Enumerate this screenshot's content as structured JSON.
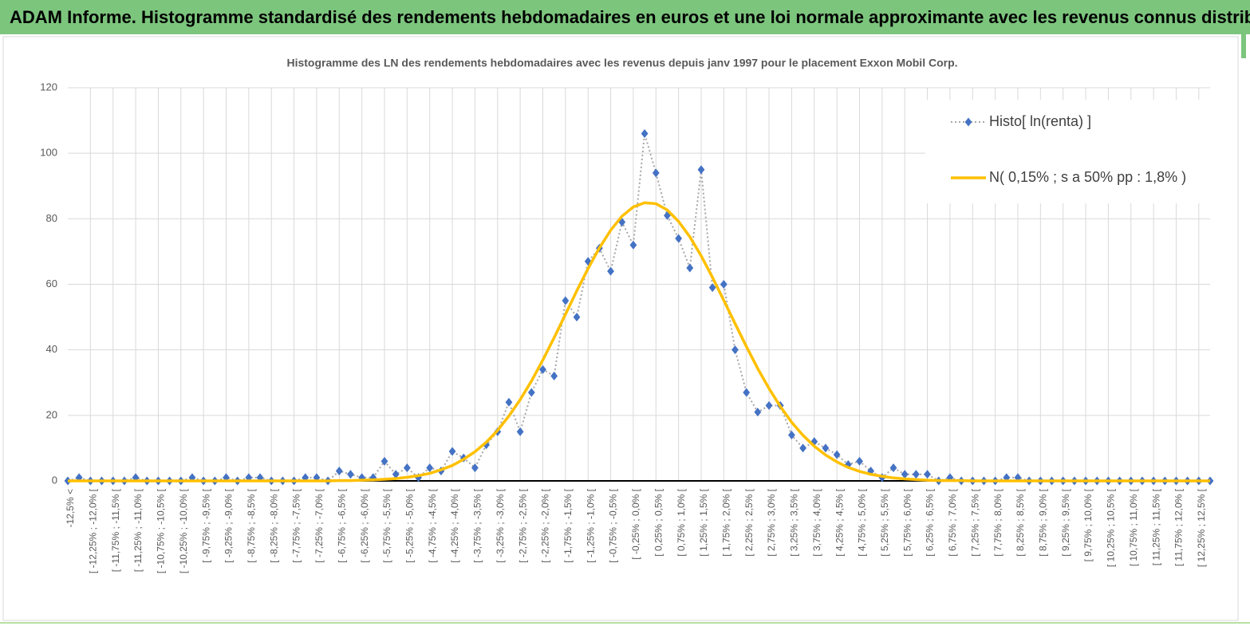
{
  "header": {
    "title": "ADAM Informe. Histogramme standardisé des rendements hebdomadaires en euros et une loi normale approximante avec les revenus connus distribués"
  },
  "chart_data": {
    "type": "line",
    "title": "Histogramme des LN des rendements hebdomadaires avec les revenus depuis janv 1997 pour le placement Exxon Mobil Corp.",
    "categories": [
      "-12,5% <",
      null,
      "[ -12,25% ; -12,0% [",
      null,
      "[ -11,75% ; -11,5% [",
      null,
      "[ -11,25% ; -11,0% [",
      null,
      "[ -10,75% ; -10,5% [",
      null,
      "[ -10,25% ; -10,0% [",
      null,
      "[ -9,75% ; -9,5% [",
      null,
      "[ -9,25% ; -9,0% [",
      null,
      "[ -8,75% ; -8,5% [",
      null,
      "[ -8,25% ; -8,0% [",
      null,
      "[ -7,75% ; -7,5% [",
      null,
      "[ -7,25% ; -7,0% [",
      null,
      "[ -6,75% ; -6,5% [",
      null,
      "[ -6,25% ; -6,0% [",
      null,
      "[ -5,75% ; -5,5% [",
      null,
      "[ -5,25% ; -5,0% [",
      null,
      "[ -4,75% ; -4,5% [",
      null,
      "[ -4,25% ; -4,0% [",
      null,
      "[ -3,75% ; -3,5% [",
      null,
      "[ -3,25% ; -3,0% [",
      null,
      "[ -2,75% ; -2,5% [",
      null,
      "[ -2,25% ; -2,0% [",
      null,
      "[ -1,75% ; -1,5% [",
      null,
      "[ -1,25% ; -1,0% [",
      null,
      "[ -0,75% ; -0,5% [",
      null,
      "[ -0,25% ; 0,0% [",
      null,
      "[ 0,25% ; 0,5% [",
      null,
      "[ 0,75% ; 1,0% [",
      null,
      "[ 1,25% ; 1,5% [",
      null,
      "[ 1,75% ; 2,0% [",
      null,
      "[ 2,25% ; 2,5% [",
      null,
      "[ 2,75% ; 3,0% [",
      null,
      "[ 3,25% ; 3,5% [",
      null,
      "[ 3,75% ; 4,0% [",
      null,
      "[ 4,25% ; 4,5% [",
      null,
      "[ 4,75% ; 5,0% [",
      null,
      "[ 5,25% ; 5,5% [",
      null,
      "[ 5,75% ; 6,0% [",
      null,
      "[ 6,25% ; 6,5% [",
      null,
      "[ 6,75% ; 7,0% [",
      null,
      "[ 7,25% ; 7,5% [",
      null,
      "[ 7,75% ; 8,0% [",
      null,
      "[ 8,25% ; 8,5% [",
      null,
      "[ 8,75% ; 9,0% [",
      null,
      "[ 9,25% ; 9,5% [",
      null,
      "[ 9,75% ; 10,0% [",
      null,
      "[ 10,25% ; 10,5% [",
      null,
      "[ 10,75% ; 11,0% [",
      null,
      "[ 11,25% ; 11,5% [",
      null,
      "[ 11,75% ; 12,0% [",
      null,
      "[ 12,25% ; 12,5% [",
      null
    ],
    "series": [
      {
        "name": "Histo[ ln(renta) ]",
        "color": "#4472c4",
        "line_color": "#a6a6a6",
        "line_style": "dotted",
        "marker": "diamond",
        "values": [
          0,
          1,
          0,
          0,
          0,
          0,
          1,
          0,
          0,
          0,
          0,
          1,
          0,
          0,
          1,
          0,
          1,
          1,
          0,
          0,
          0,
          1,
          1,
          0,
          3,
          2,
          1,
          1,
          6,
          2,
          4,
          1,
          4,
          3,
          9,
          7,
          4,
          11,
          15,
          24,
          15,
          27,
          34,
          32,
          55,
          50,
          67,
          71,
          64,
          79,
          72,
          106,
          94,
          81,
          74,
          65,
          95,
          59,
          60,
          40,
          27,
          21,
          23,
          23,
          14,
          10,
          12,
          10,
          8,
          5,
          6,
          3,
          1,
          4,
          2,
          2,
          2,
          0,
          1,
          0,
          0,
          0,
          0,
          1,
          1,
          0,
          0,
          0,
          0,
          0,
          0,
          0,
          0,
          0,
          0,
          0,
          0,
          0,
          0,
          0,
          0,
          0
        ]
      },
      {
        "name": "N( 0,15% ; s a 50% pp : 1,8% )",
        "color": "#ffc000",
        "line_style": "solid",
        "marker": "none",
        "values": [
          0,
          0,
          0,
          0,
          0,
          0,
          0,
          0,
          0,
          0,
          0,
          0,
          0,
          0,
          0,
          0,
          0,
          0,
          0,
          0,
          0,
          0,
          0,
          0,
          0.1,
          0.1,
          0.2,
          0.3,
          0.5,
          0.7,
          1.1,
          1.6,
          2.3,
          3.4,
          4.7,
          6.6,
          8.9,
          11.8,
          15.4,
          19.8,
          24.8,
          30.5,
          36.9,
          43.7,
          50.8,
          58.0,
          64.8,
          71.1,
          76.5,
          80.8,
          83.6,
          84.9,
          84.6,
          82.7,
          79.2,
          74.5,
          68.7,
          62.1,
          55.1,
          48.0,
          41.0,
          34.3,
          28.2,
          22.7,
          17.9,
          13.9,
          10.6,
          7.9,
          5.8,
          4.1,
          2.9,
          2.0,
          1.4,
          0.9,
          0.6,
          0.4,
          0.2,
          0.1,
          0.1,
          0.1,
          0,
          0,
          0,
          0,
          0,
          0,
          0,
          0,
          0,
          0,
          0,
          0,
          0,
          0,
          0,
          0,
          0,
          0,
          0,
          0,
          0,
          0
        ]
      }
    ],
    "ylim": [
      0,
      120
    ],
    "yticks": [
      0,
      20,
      40,
      60,
      80,
      100,
      120
    ],
    "grid": true,
    "legend": "upper right"
  }
}
